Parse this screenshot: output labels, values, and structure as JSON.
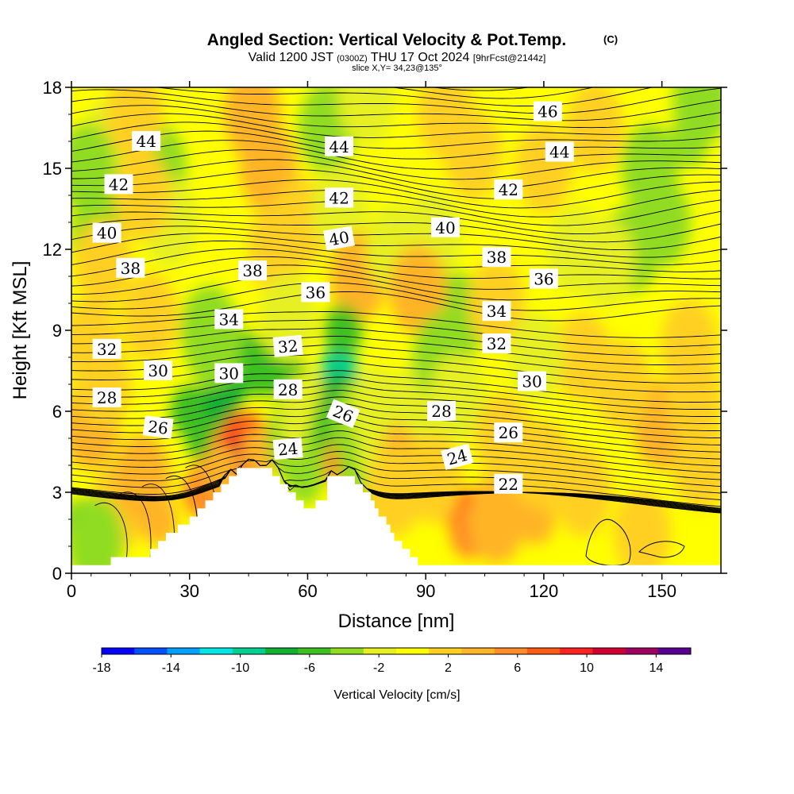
{
  "header": {
    "title": "Angled Section: Vertical Velocity & Pot.Temp.",
    "copyright": "(C)",
    "valid_prefix": "Valid 1200 JST",
    "valid_utc": "(0300Z)",
    "valid_date": "THU 17 Oct 2024",
    "forecast": "[9hrFcst@2144z]",
    "slice": "slice X,Y= 34,23@135°"
  },
  "chart_data": {
    "type": "heatmap",
    "xlabel": "Distance [nm]",
    "ylabel": "Height [Kft MSL]",
    "xlim": [
      0,
      165
    ],
    "ylim": [
      0,
      18
    ],
    "x_ticks": [
      0,
      30,
      60,
      90,
      120,
      150
    ],
    "y_ticks": [
      0,
      3,
      6,
      9,
      12,
      15,
      18
    ],
    "colorbar": {
      "label": "Vertical Velocity [cm/s]",
      "range": [
        -18,
        16
      ],
      "tick_values": [
        -18,
        -14,
        -10,
        -6,
        -2,
        2,
        6,
        10,
        14
      ],
      "tick_labels": [
        "-18",
        "-14",
        "-10",
        "-6",
        "-2",
        "2",
        "6",
        "10",
        "14"
      ],
      "colors": [
        "#0000ff",
        "#0050ff",
        "#00a0ff",
        "#00e6e6",
        "#00d090",
        "#10b030",
        "#3cc020",
        "#90dc20",
        "#e6f020",
        "#ffff00",
        "#ffd020",
        "#ffb428",
        "#ff8c28",
        "#ff5a14",
        "#ff2020",
        "#d20030",
        "#a00060",
        "#5a0090"
      ]
    },
    "terrain_profile": [
      [
        0,
        0.3
      ],
      [
        10,
        0.3
      ],
      [
        10,
        0.6
      ],
      [
        20,
        0.6
      ],
      [
        20,
        0.9
      ],
      [
        22,
        0.9
      ],
      [
        22,
        1.2
      ],
      [
        24,
        1.2
      ],
      [
        24,
        1.5
      ],
      [
        27,
        1.5
      ],
      [
        27,
        1.8
      ],
      [
        30,
        1.8
      ],
      [
        30,
        2.1
      ],
      [
        32,
        2.1
      ],
      [
        32,
        2.4
      ],
      [
        34,
        2.4
      ],
      [
        34,
        2.7
      ],
      [
        36,
        2.7
      ],
      [
        36,
        3.0
      ],
      [
        38,
        3.0
      ],
      [
        38,
        3.3
      ],
      [
        40,
        3.3
      ],
      [
        40,
        3.6
      ],
      [
        42,
        3.6
      ],
      [
        42,
        3.9
      ],
      [
        51,
        3.9
      ],
      [
        51,
        3.6
      ],
      [
        53,
        3.6
      ],
      [
        53,
        3.3
      ],
      [
        55,
        3.3
      ],
      [
        55,
        3.0
      ],
      [
        57,
        3.0
      ],
      [
        57,
        2.7
      ],
      [
        59,
        2.7
      ],
      [
        59,
        2.4
      ],
      [
        62,
        2.4
      ],
      [
        62,
        2.7
      ],
      [
        65,
        2.7
      ],
      [
        65,
        3.6
      ],
      [
        72,
        3.6
      ],
      [
        72,
        3.3
      ],
      [
        74,
        3.3
      ],
      [
        74,
        3.0
      ],
      [
        76,
        3.0
      ],
      [
        76,
        2.7
      ],
      [
        77,
        2.7
      ],
      [
        77,
        2.4
      ],
      [
        78,
        2.4
      ],
      [
        78,
        2.1
      ],
      [
        80,
        2.1
      ],
      [
        80,
        1.8
      ],
      [
        81,
        1.8
      ],
      [
        81,
        1.5
      ],
      [
        82,
        1.5
      ],
      [
        82,
        1.2
      ],
      [
        84,
        1.2
      ],
      [
        84,
        0.9
      ],
      [
        86,
        0.9
      ],
      [
        86,
        0.6
      ],
      [
        88,
        0.6
      ],
      [
        88,
        0.3
      ],
      [
        165,
        0.3
      ]
    ],
    "velocity_blobs": [
      {
        "x": 10,
        "y": 16.0,
        "value": -2
      },
      {
        "x": 7,
        "y": 12.5,
        "value": -3
      },
      {
        "x": 22,
        "y": 15.0,
        "value": -3
      },
      {
        "x": 25,
        "y": 13.0,
        "value": -2
      },
      {
        "x": 16,
        "y": 17.0,
        "value": 1
      },
      {
        "x": 18,
        "y": 14.0,
        "value": 2
      },
      {
        "x": 50,
        "y": 15.0,
        "value": 3
      },
      {
        "x": 52,
        "y": 12.0,
        "value": 2
      },
      {
        "x": 46,
        "y": 17.0,
        "value": 3
      },
      {
        "x": 58,
        "y": 13.0,
        "value": 2
      },
      {
        "x": 65,
        "y": 16.5,
        "value": -3
      },
      {
        "x": 68,
        "y": 13.5,
        "value": -2
      },
      {
        "x": 75,
        "y": 17.5,
        "value": -2
      },
      {
        "x": 73,
        "y": 11.0,
        "value": 3
      },
      {
        "x": 82,
        "y": 12.0,
        "value": -2
      },
      {
        "x": 95,
        "y": 17.0,
        "value": 2
      },
      {
        "x": 92,
        "y": 12.5,
        "value": -2
      },
      {
        "x": 98,
        "y": 9.5,
        "value": -3
      },
      {
        "x": 88,
        "y": 10.5,
        "value": 3
      },
      {
        "x": 102,
        "y": 15.5,
        "value": 2
      },
      {
        "x": 108,
        "y": 10.0,
        "value": 2
      },
      {
        "x": 120,
        "y": 15.0,
        "value": 2
      },
      {
        "x": 133,
        "y": 16.5,
        "value": 2
      },
      {
        "x": 147,
        "y": 15.0,
        "value": -3
      },
      {
        "x": 157,
        "y": 16.0,
        "value": -4
      },
      {
        "x": 142,
        "y": 12.0,
        "value": -3
      },
      {
        "x": 150,
        "y": 13.0,
        "value": -3
      },
      {
        "x": 136,
        "y": 11.5,
        "value": -2
      },
      {
        "x": 160,
        "y": 17.5,
        "value": -3
      },
      {
        "x": 5,
        "y": 8.5,
        "value": 2
      },
      {
        "x": 5,
        "y": 5.5,
        "value": 3
      },
      {
        "x": 8,
        "y": 7.0,
        "value": 2
      },
      {
        "x": 20,
        "y": 9.5,
        "value": 2
      },
      {
        "x": 12,
        "y": 2.5,
        "value": 2
      },
      {
        "x": 3,
        "y": 1.8,
        "value": -5
      },
      {
        "x": 6,
        "y": 1.2,
        "value": -3
      },
      {
        "x": 18,
        "y": 3.5,
        "value": 3
      },
      {
        "x": 22,
        "y": 2.0,
        "value": 4
      },
      {
        "x": 30,
        "y": 6.0,
        "value": -5
      },
      {
        "x": 34,
        "y": 5.0,
        "value": -6
      },
      {
        "x": 38,
        "y": 6.5,
        "value": -8
      },
      {
        "x": 40,
        "y": 7.0,
        "value": -7
      },
      {
        "x": 44,
        "y": 8.0,
        "value": -6
      },
      {
        "x": 48,
        "y": 7.5,
        "value": -5
      },
      {
        "x": 52,
        "y": 8.0,
        "value": -6
      },
      {
        "x": 56,
        "y": 7.0,
        "value": -5
      },
      {
        "x": 36,
        "y": 8.5,
        "value": -3
      },
      {
        "x": 35,
        "y": 9.0,
        "value": -3
      },
      {
        "x": 55,
        "y": 9.5,
        "value": -2
      },
      {
        "x": 40,
        "y": 4.5,
        "value": 5
      },
      {
        "x": 43,
        "y": 5.0,
        "value": 9
      },
      {
        "x": 45,
        "y": 5.0,
        "value": 8
      },
      {
        "x": 42,
        "y": 4.0,
        "value": 11
      },
      {
        "x": 48,
        "y": 4.5,
        "value": 4
      },
      {
        "x": 36,
        "y": 3.5,
        "value": 8
      },
      {
        "x": 33,
        "y": 3.0,
        "value": 6
      },
      {
        "x": 38,
        "y": 3.8,
        "value": 4
      },
      {
        "x": 57,
        "y": 5.0,
        "value": -3
      },
      {
        "x": 59,
        "y": 3.5,
        "value": -4
      },
      {
        "x": 60,
        "y": 5.8,
        "value": -2
      },
      {
        "x": 63,
        "y": 4.5,
        "value": -4
      },
      {
        "x": 66,
        "y": 5.5,
        "value": -6
      },
      {
        "x": 68,
        "y": 7.5,
        "value": -9
      },
      {
        "x": 69,
        "y": 9.0,
        "value": -6
      },
      {
        "x": 68,
        "y": 6.5,
        "value": -8
      },
      {
        "x": 70,
        "y": 4.5,
        "value": 8
      },
      {
        "x": 69,
        "y": 4.0,
        "value": 6
      },
      {
        "x": 73,
        "y": 5.5,
        "value": -3
      },
      {
        "x": 75,
        "y": 3.8,
        "value": -3
      },
      {
        "x": 78,
        "y": 6.0,
        "value": -2
      },
      {
        "x": 80,
        "y": 4.5,
        "value": -2
      },
      {
        "x": 85,
        "y": 4.0,
        "value": 3
      },
      {
        "x": 82,
        "y": 3.0,
        "value": 2
      },
      {
        "x": 90,
        "y": 6.5,
        "value": -2
      },
      {
        "x": 94,
        "y": 8.0,
        "value": -3
      },
      {
        "x": 98,
        "y": 6.5,
        "value": -2
      },
      {
        "x": 100,
        "y": 2.2,
        "value": 8
      },
      {
        "x": 101,
        "y": 1.5,
        "value": 5
      },
      {
        "x": 108,
        "y": 2.0,
        "value": 3
      },
      {
        "x": 118,
        "y": 2.0,
        "value": 4
      },
      {
        "x": 120,
        "y": 4.0,
        "value": 2
      },
      {
        "x": 130,
        "y": 3.0,
        "value": 2
      },
      {
        "x": 150,
        "y": 5.5,
        "value": 3
      },
      {
        "x": 160,
        "y": 4.0,
        "value": 2
      },
      {
        "x": 158,
        "y": 6.5,
        "value": 2
      },
      {
        "x": 140,
        "y": 7.0,
        "value": 2
      },
      {
        "x": 157,
        "y": 8.5,
        "value": 2
      },
      {
        "x": 145,
        "y": 1.5,
        "value": 2
      },
      {
        "x": 130,
        "y": 8.0,
        "value": 2
      },
      {
        "x": 110,
        "y": 5.0,
        "value": 2
      },
      {
        "x": 128,
        "y": 12.0,
        "value": -2
      },
      {
        "x": 118,
        "y": 8.0,
        "value": -2
      },
      {
        "x": 92,
        "y": 3.5,
        "value": 2
      },
      {
        "x": 8,
        "y": 11.5,
        "value": 2
      },
      {
        "x": 4,
        "y": 15.0,
        "value": -3
      }
    ],
    "isentropes": [
      {
        "value": 22,
        "label_x": 111,
        "label_y": 3.3
      },
      {
        "value": 24,
        "label_x": 55,
        "label_y": 4.6,
        "rotate": -5
      },
      {
        "value": 24,
        "label_x": 98,
        "label_y": 4.3,
        "rotate": -15
      },
      {
        "value": 26,
        "label_x": 22,
        "label_y": 5.4,
        "rotate": 7
      },
      {
        "value": 26,
        "label_x": 69,
        "label_y": 5.9,
        "rotate": 22
      },
      {
        "value": 26,
        "label_x": 111,
        "label_y": 5.2
      },
      {
        "value": 28,
        "label_x": 9,
        "label_y": 6.5
      },
      {
        "value": 28,
        "label_x": 55,
        "label_y": 6.8
      },
      {
        "value": 28,
        "label_x": 94,
        "label_y": 6.0
      },
      {
        "value": 30,
        "label_x": 22,
        "label_y": 7.5
      },
      {
        "value": 30,
        "label_x": 40,
        "label_y": 7.4
      },
      {
        "value": 30,
        "label_x": 117,
        "label_y": 7.1
      },
      {
        "value": 32,
        "label_x": 9,
        "label_y": 8.3
      },
      {
        "value": 32,
        "label_x": 55,
        "label_y": 8.4,
        "rotate": -5
      },
      {
        "value": 32,
        "label_x": 108,
        "label_y": 8.5
      },
      {
        "value": 34,
        "label_x": 40,
        "label_y": 9.4
      },
      {
        "value": 34,
        "label_x": 108,
        "label_y": 9.7
      },
      {
        "value": 36,
        "label_x": 62,
        "label_y": 10.4
      },
      {
        "value": 36,
        "label_x": 120,
        "label_y": 10.9
      },
      {
        "value": 38,
        "label_x": 15,
        "label_y": 11.3
      },
      {
        "value": 38,
        "label_x": 46,
        "label_y": 11.2
      },
      {
        "value": 38,
        "label_x": 108,
        "label_y": 11.7
      },
      {
        "value": 40,
        "label_x": 9,
        "label_y": 12.6
      },
      {
        "value": 40,
        "label_x": 68,
        "label_y": 12.4,
        "rotate": -10
      },
      {
        "value": 40,
        "label_x": 95,
        "label_y": 12.8
      },
      {
        "value": 42,
        "label_x": 12,
        "label_y": 14.4
      },
      {
        "value": 42,
        "label_x": 68,
        "label_y": 13.9
      },
      {
        "value": 42,
        "label_x": 111,
        "label_y": 14.2
      },
      {
        "value": 44,
        "label_x": 19,
        "label_y": 16.0
      },
      {
        "value": 44,
        "label_x": 68,
        "label_y": 15.8
      },
      {
        "value": 44,
        "label_x": 124,
        "label_y": 15.6
      },
      {
        "value": 46,
        "label_x": 121,
        "label_y": 17.1
      }
    ]
  }
}
